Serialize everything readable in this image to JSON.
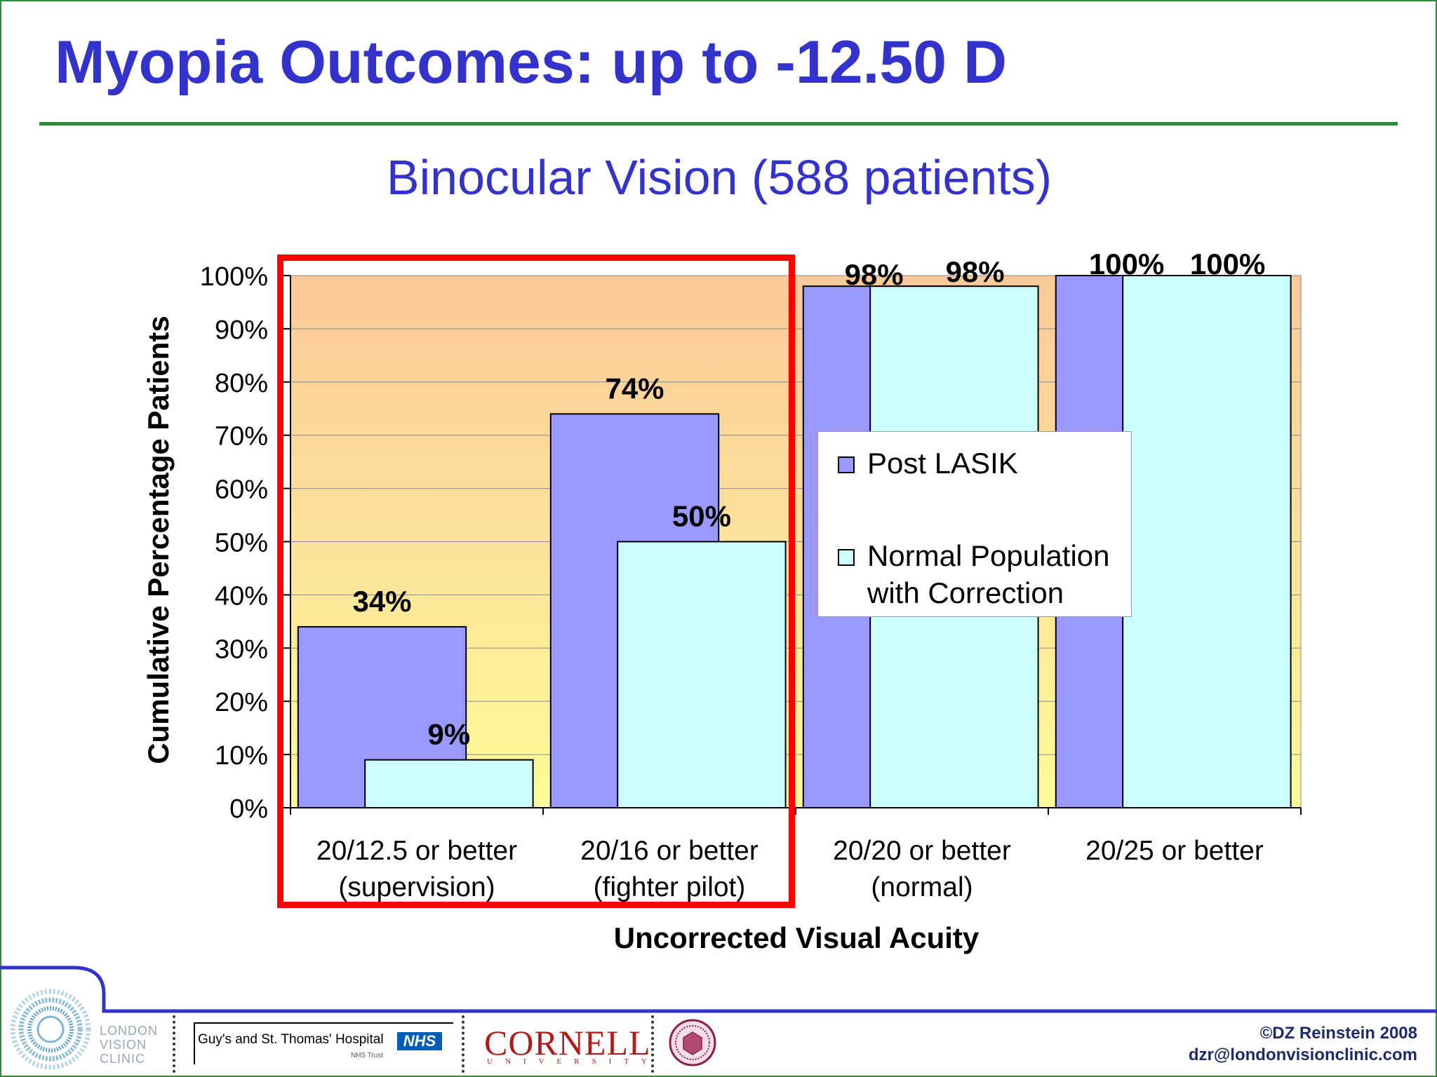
{
  "slide": {
    "title": "Myopia Outcomes: up to -12.50 D"
  },
  "chart_data": {
    "type": "bar",
    "title": "Binocular Vision (588 patients)",
    "xlabel": "Uncorrected Visual Acuity",
    "ylabel": "Cumulative Percentage Patients",
    "ylim": [
      0,
      100
    ],
    "yticks": [
      "0%",
      "10%",
      "20%",
      "30%",
      "40%",
      "50%",
      "60%",
      "70%",
      "80%",
      "90%",
      "100%"
    ],
    "categories": [
      [
        "20/12.5 or better",
        "(supervision)"
      ],
      [
        "20/16 or better",
        "(fighter pilot)"
      ],
      [
        "20/20 or better",
        "(normal)"
      ],
      [
        "20/25 or better",
        ""
      ]
    ],
    "series": [
      {
        "name": "Post LASIK",
        "color": "#9999ff",
        "values": [
          34,
          74,
          98,
          100
        ],
        "labels": [
          "34%",
          "74%",
          "98%",
          "100%"
        ]
      },
      {
        "name": "Normal Population with Correction",
        "color": "#ccffff",
        "values": [
          9,
          50,
          98,
          100
        ],
        "labels": [
          "9%",
          "50%",
          "98%",
          "100%"
        ]
      }
    ],
    "grid": true,
    "legend_position": "center-right",
    "plot_background": [
      "#fbc999",
      "#fffb99"
    ],
    "highlight": "first two categories outlined in red",
    "highlight_color": "#ff0000"
  },
  "footer": {
    "logo_lvc": [
      "LONDON",
      "VISION",
      "CLINIC"
    ],
    "logo_guys": "Guy's and St. Thomas' Hospital",
    "logo_nhs": "NHS",
    "logo_nhs_trust": "NHS Trust",
    "logo_cornell": "CORNELL",
    "logo_cornell_sub": "UNIVERSITY",
    "copyright": "©DZ Reinstein 2008",
    "email": "dzr@londonvisionclinic.com"
  }
}
